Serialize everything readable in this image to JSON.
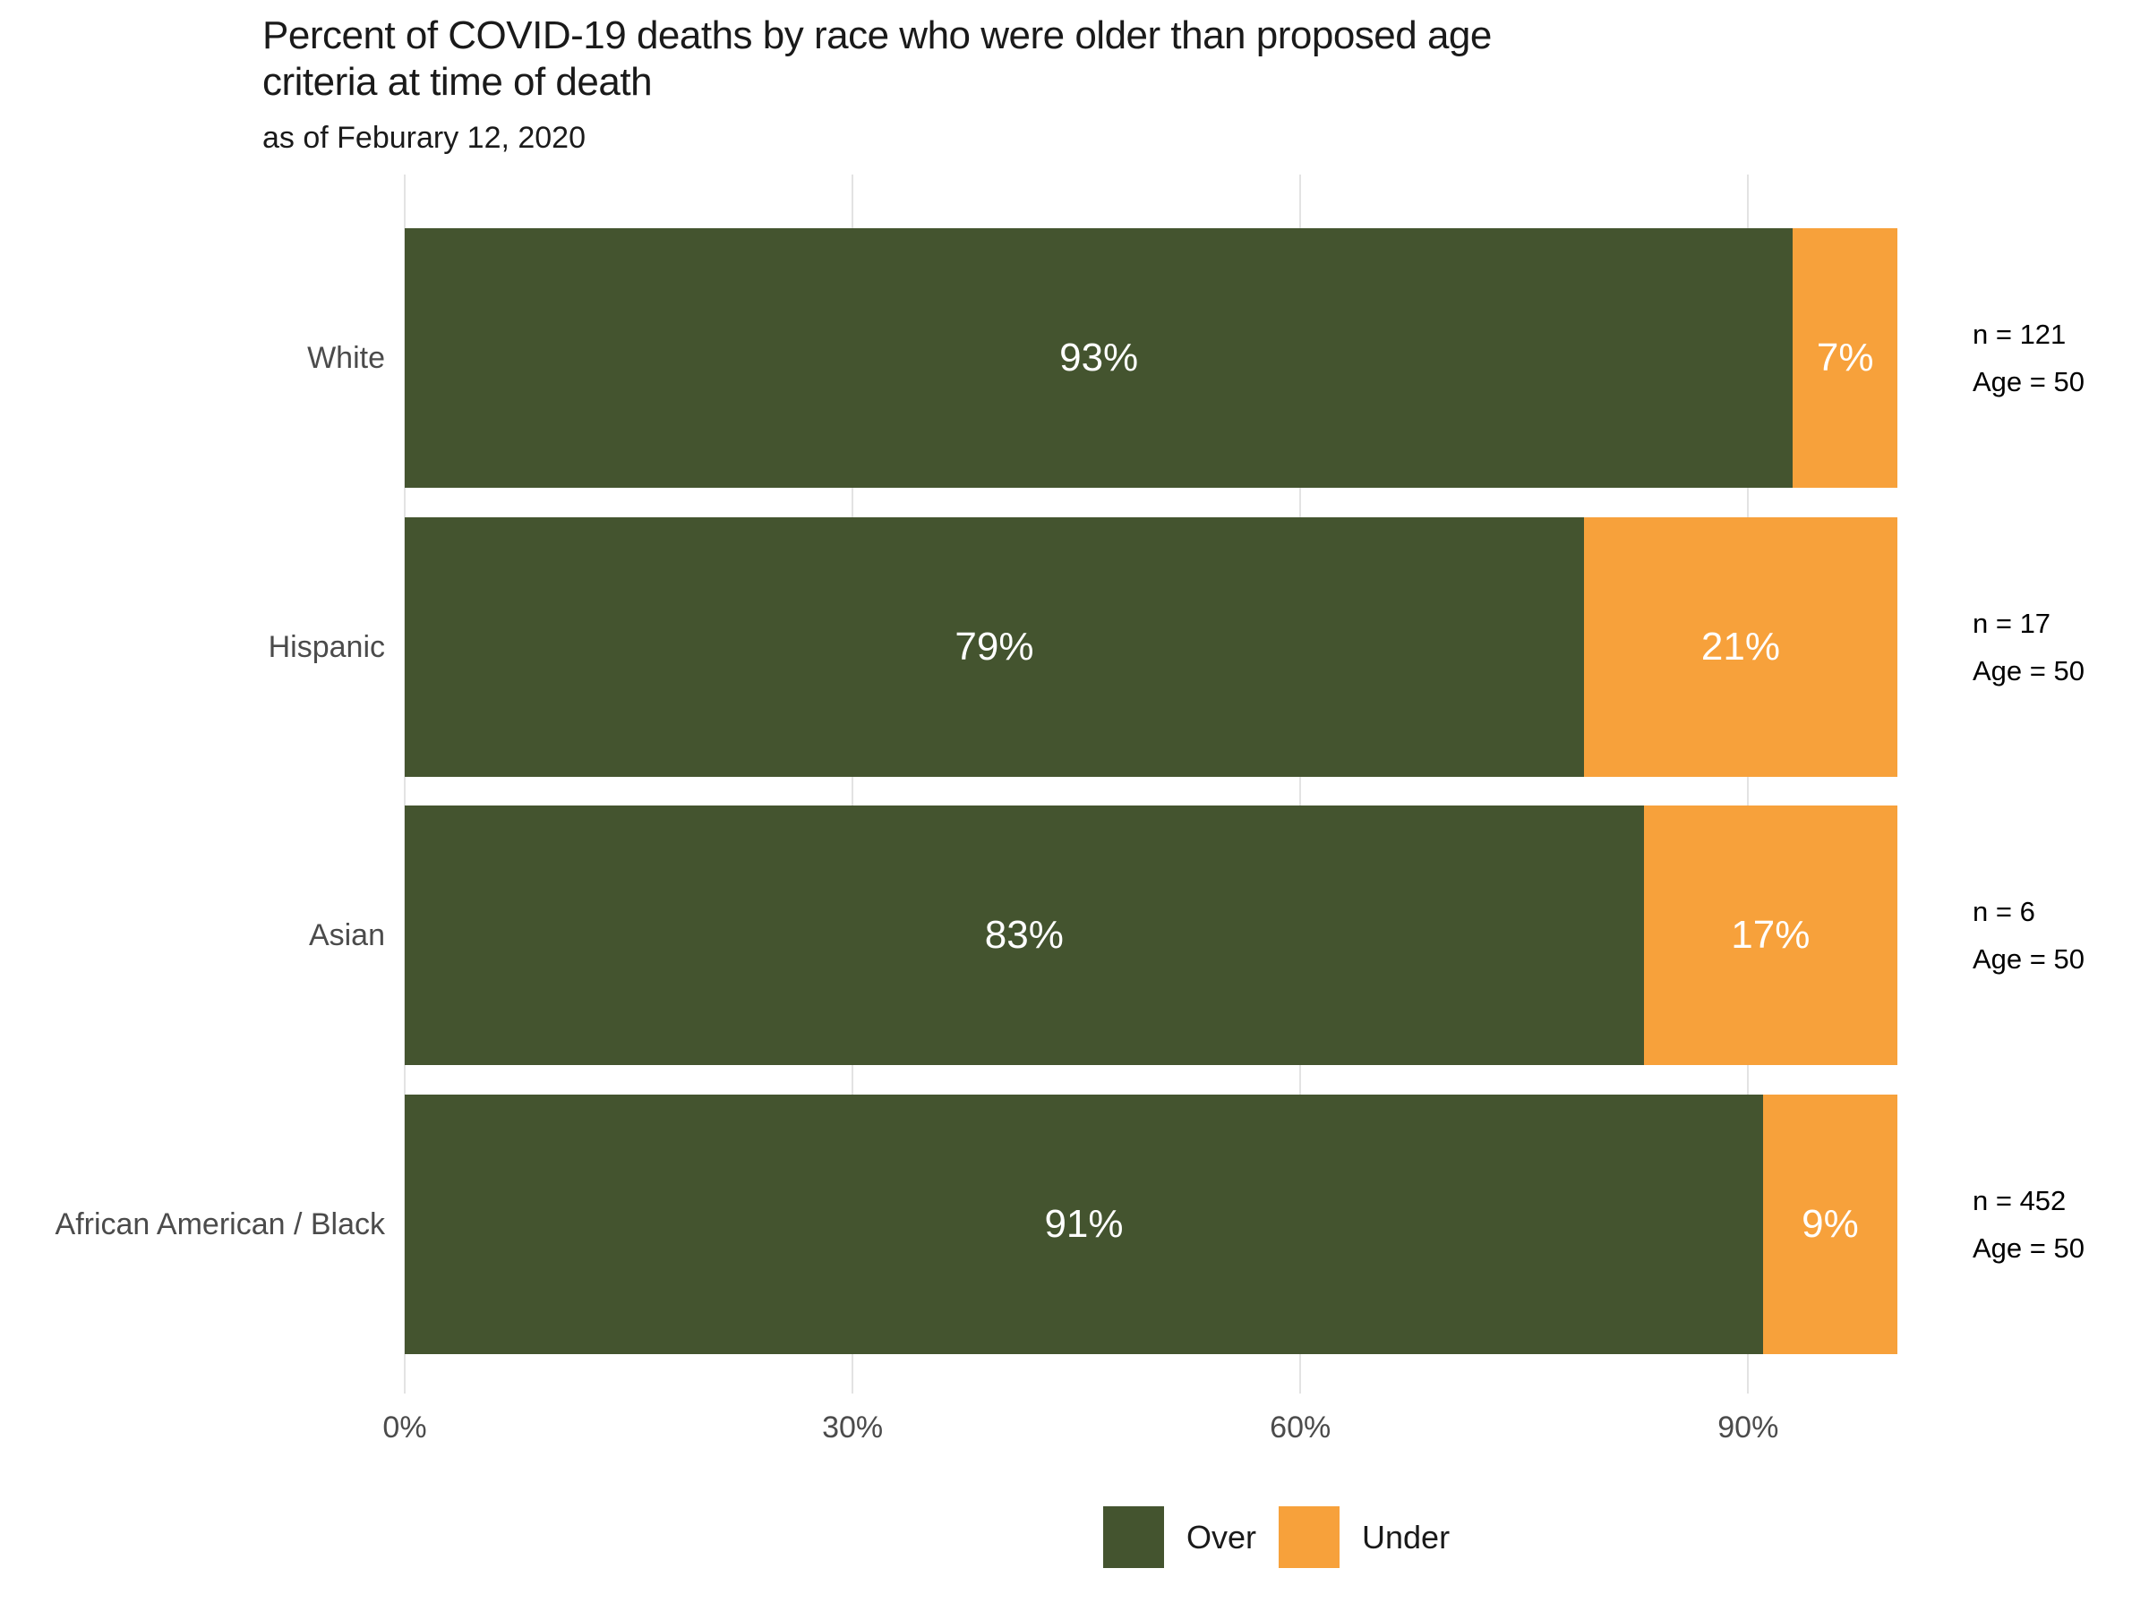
{
  "title": "Percent of COVID-19 deaths by race who were older than proposed age criteria at time of death",
  "title_lines": [
    "Percent of COVID-19 deaths by race who were older than proposed age",
    "criteria at time of death"
  ],
  "subtitle": "as of Feburary 12, 2020",
  "chart_data": {
    "type": "bar",
    "orientation": "horizontal",
    "stacked": true,
    "title": "Percent of COVID-19 deaths by race who were older than proposed age criteria at time of death",
    "subtitle": "as of Feburary 12, 2020",
    "categories": [
      "White",
      "Hispanic",
      "Asian",
      "African American / Black"
    ],
    "series": [
      {
        "name": "Over",
        "color": "#44542f",
        "values": [
          93,
          79,
          83,
          91
        ],
        "labels": [
          "93%",
          "79%",
          "83%",
          "91%"
        ]
      },
      {
        "name": "Under",
        "color": "#f7a13b",
        "values": [
          7,
          21,
          17,
          9
        ],
        "labels": [
          "7%",
          "21%",
          "17%",
          "9%"
        ]
      }
    ],
    "bar_annotations": [
      {
        "n": "n = 121",
        "age": "Age = 50"
      },
      {
        "n": "n = 17",
        "age": "Age = 50"
      },
      {
        "n": "n = 6",
        "age": "Age = 50"
      },
      {
        "n": "n = 452",
        "age": "Age = 50"
      }
    ],
    "x_ticks": [
      {
        "label": "0%",
        "value": 0
      },
      {
        "label": "30%",
        "value": 30
      },
      {
        "label": "60%",
        "value": 60
      },
      {
        "label": "90%",
        "value": 90
      }
    ],
    "xlim": [
      0,
      100
    ],
    "grid": "vertical-gridlines-only",
    "legend_position": "bottom",
    "value_label_color": "#ffffff",
    "gridline_color": "#e3e3e3",
    "axis_text_color": "#4b4b4b"
  },
  "legend": {
    "items": [
      {
        "label": "Over",
        "color": "#44542f"
      },
      {
        "label": "Under",
        "color": "#f7a13b"
      }
    ]
  }
}
